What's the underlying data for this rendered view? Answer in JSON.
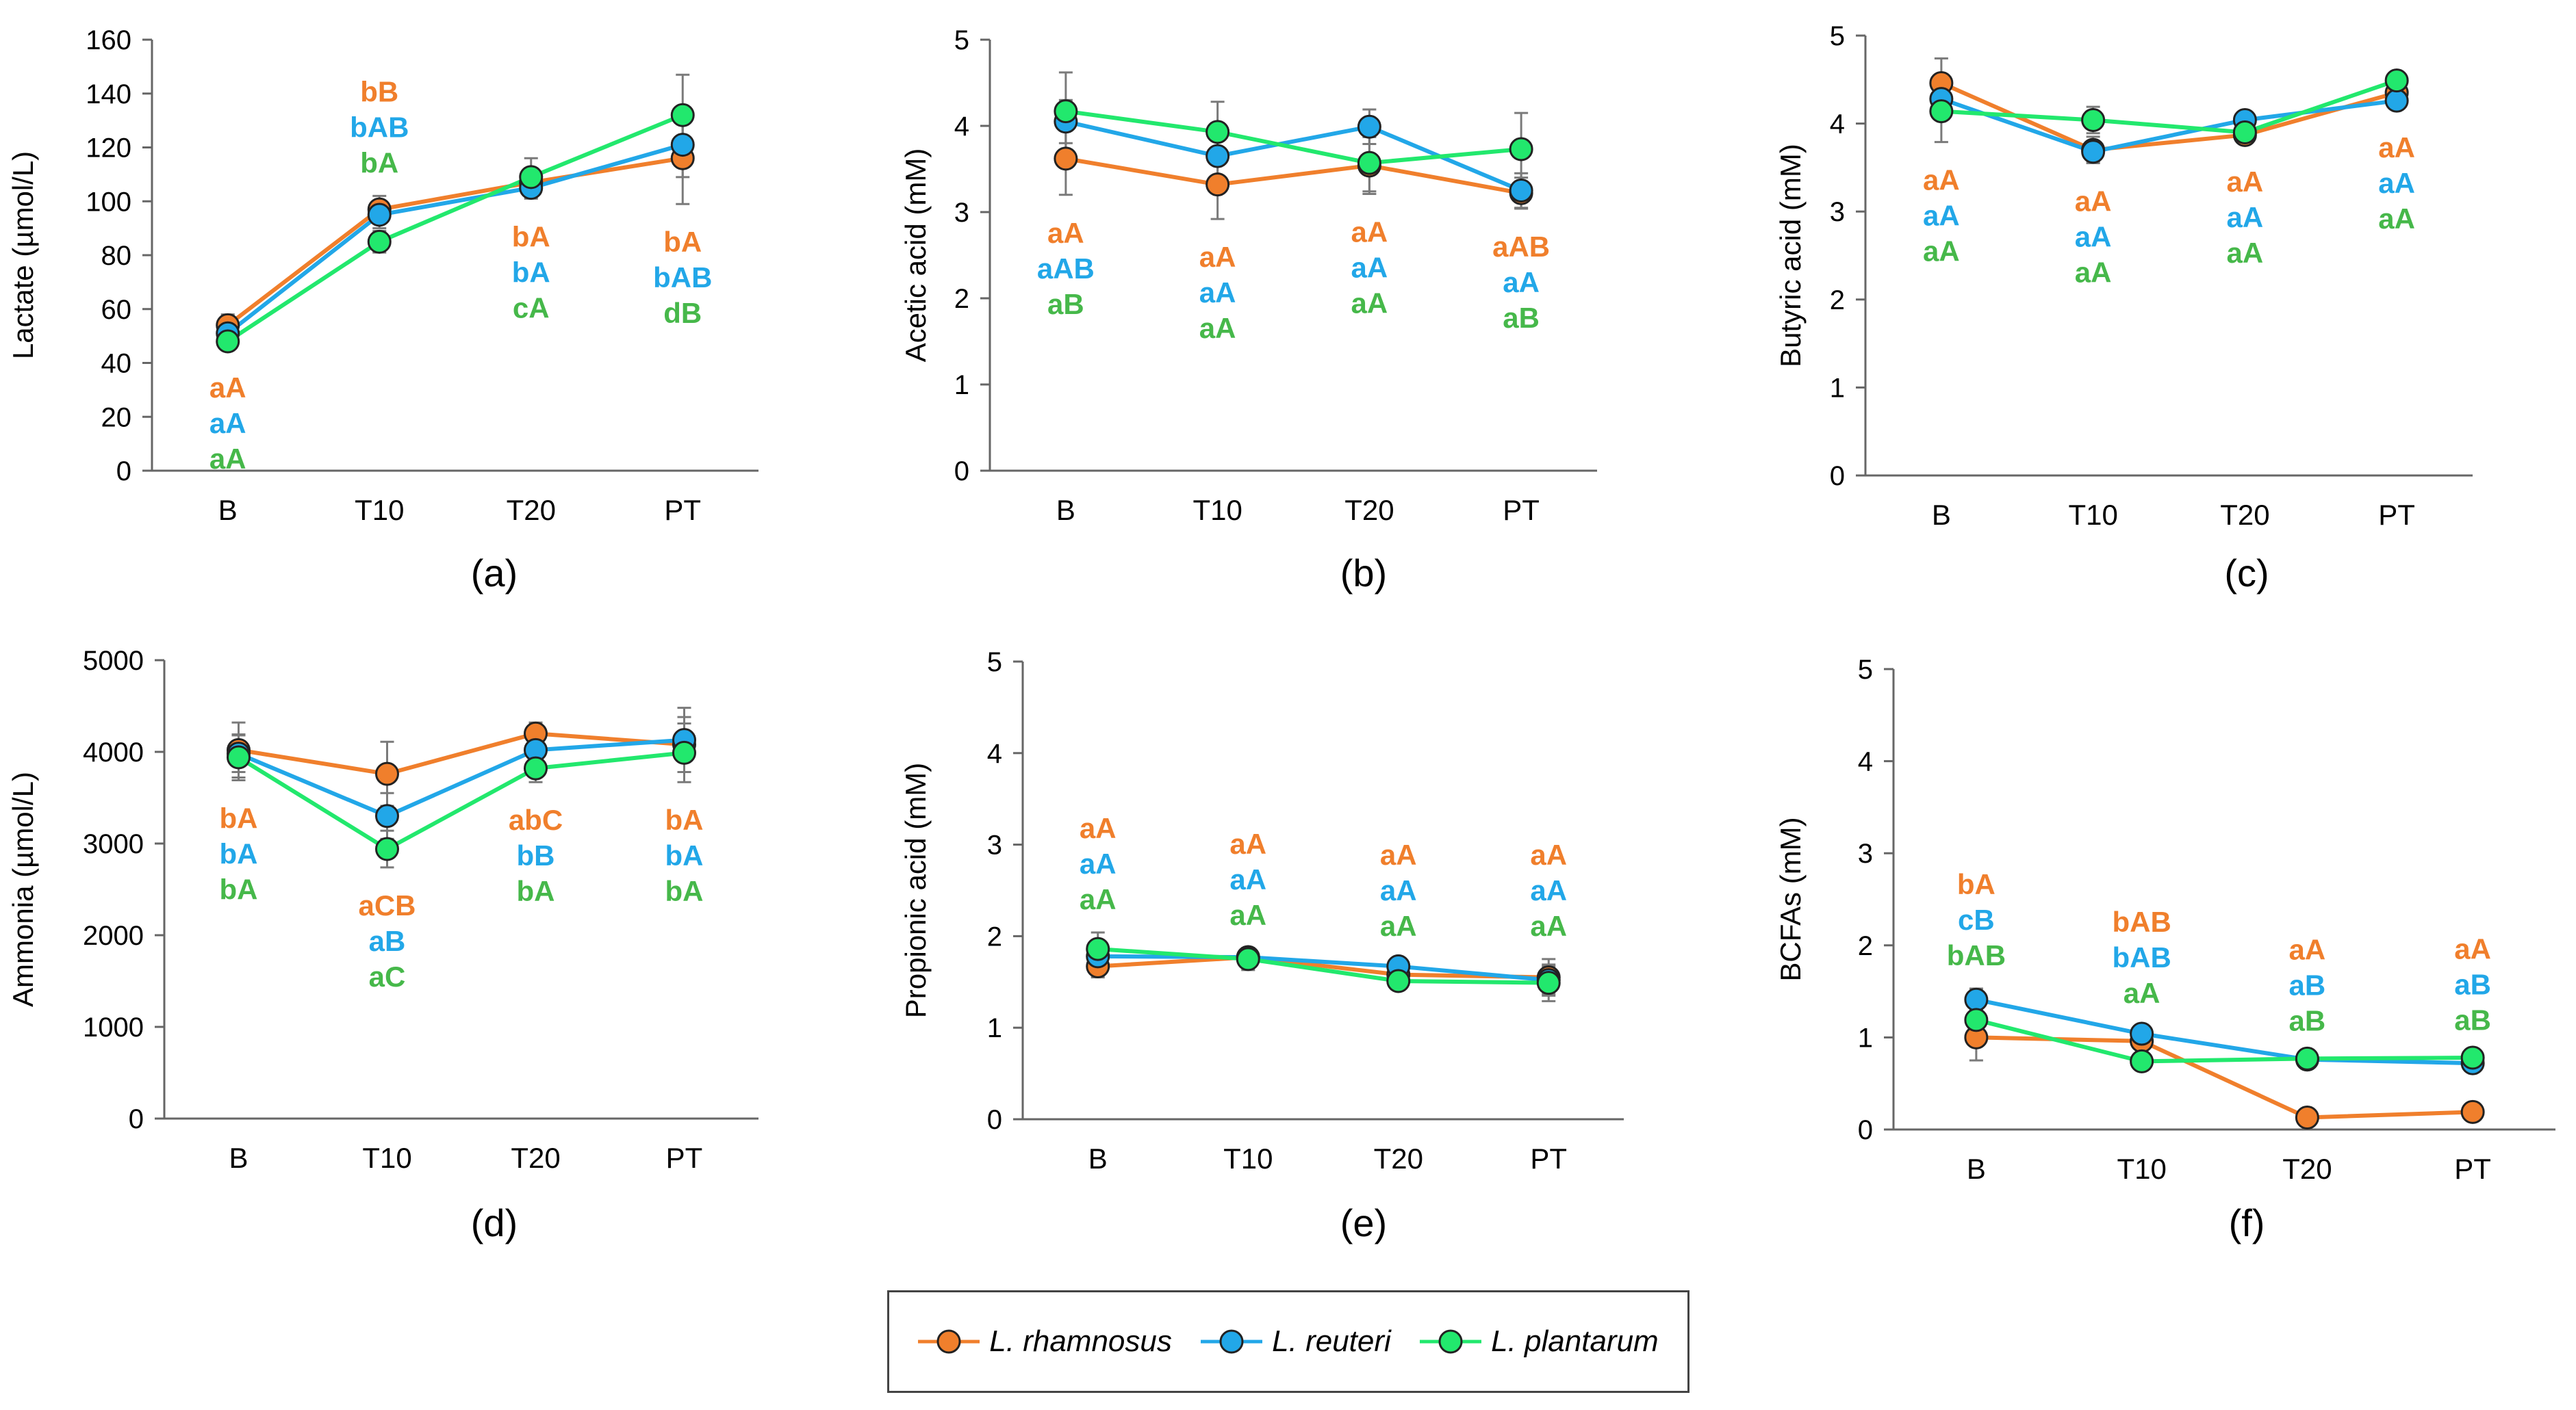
{
  "series_styles": [
    {
      "name": "L. rhamnosus",
      "color": "#F07F2C"
    },
    {
      "name": "L. reuteri",
      "color": "#22A7E8"
    },
    {
      "name": "L. plantarum",
      "color": "#22E86D"
    }
  ],
  "letter_colors": [
    "#F07F2C",
    "#22A7E8",
    "#46B84A"
  ],
  "legend": {
    "items": [
      "L. rhamnosus",
      "L. reuteri",
      "L. plantarum"
    ]
  },
  "chart_data": [
    {
      "type": "line",
      "caption": "(a)",
      "ylabel": "Lactate (µmol/L)",
      "categories": [
        "B",
        "T10",
        "T20",
        "PT"
      ],
      "ylim": [
        0,
        160
      ],
      "yticks": [
        "0",
        "20",
        "40",
        "60",
        "80",
        "100",
        "120",
        "140",
        "160"
      ],
      "series": [
        {
          "name": "L. rhamnosus",
          "values": [
            54,
            97,
            107,
            116
          ],
          "errors": [
            4,
            5,
            5,
            17
          ]
        },
        {
          "name": "L. reuteri",
          "values": [
            51,
            95,
            105,
            121
          ],
          "errors": [
            3,
            5,
            4,
            12
          ]
        },
        {
          "name": "L. plantarum",
          "values": [
            48,
            85,
            109,
            132
          ],
          "errors": [
            3,
            4,
            7,
            15
          ]
        }
      ],
      "letters": [
        [
          "aA",
          "aA",
          "aA"
        ],
        [
          "bB",
          "bAB",
          "bA"
        ],
        [
          "bA",
          "bA",
          "cA"
        ],
        [
          "bA",
          "bAB",
          "dB"
        ]
      ],
      "letter_positions": [
        "below",
        "above",
        "below",
        "below"
      ]
    },
    {
      "type": "line",
      "caption": "(b)",
      "ylabel": "Acetic acid (mM)",
      "categories": [
        "B",
        "T10",
        "T20",
        "PT"
      ],
      "ylim": [
        0,
        5
      ],
      "yticks": [
        "0",
        "1",
        "2",
        "3",
        "4",
        "5"
      ],
      "series": [
        {
          "name": "L. rhamnosus",
          "values": [
            3.62,
            3.32,
            3.54,
            3.22
          ],
          "errors": [
            0.42,
            0.4,
            0.33,
            0.18
          ]
        },
        {
          "name": "L. reuteri",
          "values": [
            4.05,
            3.65,
            3.99,
            3.25
          ],
          "errors": [
            0.25,
            0.3,
            0.2,
            0.2
          ]
        },
        {
          "name": "L. plantarum",
          "values": [
            4.17,
            3.93,
            3.57,
            3.73
          ],
          "errors": [
            0.45,
            0.35,
            0.33,
            0.42
          ]
        }
      ],
      "letters": [
        [
          "aA",
          "aAB",
          "aB"
        ],
        [
          "aA",
          "aA",
          "aA"
        ],
        [
          "aA",
          "aA",
          "aA"
        ],
        [
          "aAB",
          "aA",
          "aB"
        ]
      ],
      "letter_positions": [
        "below",
        "below",
        "below",
        "below"
      ]
    },
    {
      "type": "line",
      "caption": "(c)",
      "ylabel": "Butyric acid (mM)",
      "categories": [
        "B",
        "T10",
        "T20",
        "PT"
      ],
      "ylim": [
        0,
        5
      ],
      "yticks": [
        "0",
        "1",
        "2",
        "3",
        "4",
        "5"
      ],
      "series": [
        {
          "name": "L. rhamnosus",
          "values": [
            4.46,
            3.7,
            3.87,
            4.35
          ],
          "errors": [
            0.28,
            0.15,
            0.1,
            0.12
          ]
        },
        {
          "name": "L. reuteri",
          "values": [
            4.28,
            3.68,
            4.04,
            4.26
          ],
          "errors": [
            0.15,
            0.12,
            0.08,
            0.1
          ]
        },
        {
          "name": "L. plantarum",
          "values": [
            4.14,
            4.04,
            3.9,
            4.49
          ],
          "errors": [
            0.35,
            0.15,
            0.12,
            0.1
          ]
        }
      ],
      "letters": [
        [
          "aA",
          "aA",
          "aA"
        ],
        [
          "aA",
          "aA",
          "aA"
        ],
        [
          "aA",
          "aA",
          "aA"
        ],
        [
          "aA",
          "aA",
          "aA"
        ]
      ],
      "letter_positions": [
        "below",
        "below",
        "below",
        "below"
      ]
    },
    {
      "type": "line",
      "caption": "(d)",
      "ylabel": "Ammonia (µmol/L)",
      "categories": [
        "B",
        "T10",
        "T20",
        "PT"
      ],
      "ylim": [
        0,
        5000
      ],
      "yticks": [
        "0",
        "1000",
        "2000",
        "3000",
        "4000",
        "5000"
      ],
      "series": [
        {
          "name": "L. rhamnosus",
          "values": [
            4020,
            3760,
            4200,
            4080
          ],
          "errors": [
            300,
            350,
            120,
            300
          ]
        },
        {
          "name": "L. reuteri",
          "values": [
            3980,
            3300,
            4020,
            4130
          ],
          "errors": [
            200,
            250,
            150,
            350
          ]
        },
        {
          "name": "L. plantarum",
          "values": [
            3940,
            2940,
            3820,
            3990
          ],
          "errors": [
            250,
            200,
            150,
            320
          ]
        }
      ],
      "letters": [
        [
          "bA",
          "bA",
          "bA"
        ],
        [
          "aCB",
          "aB",
          "aC"
        ],
        [
          "abC",
          "bB",
          "bA"
        ],
        [
          "bA",
          "bA",
          "bA"
        ]
      ],
      "letter_positions": [
        "below",
        "below",
        "below",
        "below"
      ]
    },
    {
      "type": "line",
      "caption": "(e)",
      "ylabel": "Propionic acid (mM)",
      "categories": [
        "B",
        "T10",
        "T20",
        "PT"
      ],
      "ylim": [
        0,
        5
      ],
      "yticks": [
        "0",
        "1",
        "2",
        "3",
        "4",
        "5"
      ],
      "series": [
        {
          "name": "L. rhamnosus",
          "values": [
            1.67,
            1.77,
            1.58,
            1.55
          ],
          "errors": [
            0.12,
            0.08,
            0.08,
            0.2
          ]
        },
        {
          "name": "L. reuteri",
          "values": [
            1.78,
            1.77,
            1.67,
            1.52
          ],
          "errors": [
            0.15,
            0.08,
            0.08,
            0.15
          ]
        },
        {
          "name": "L. plantarum",
          "values": [
            1.86,
            1.75,
            1.51,
            1.49
          ],
          "errors": [
            0.18,
            0.12,
            0.06,
            0.2
          ]
        }
      ],
      "letters": [
        [
          "aA",
          "aA",
          "aA"
        ],
        [
          "aA",
          "aA",
          "aA"
        ],
        [
          "aA",
          "aA",
          "aA"
        ],
        [
          "aA",
          "aA",
          "aA"
        ]
      ],
      "letter_positions": [
        "above",
        "above",
        "above",
        "above"
      ]
    },
    {
      "type": "line",
      "caption": "(f)",
      "ylabel": "BCFAs (mM)",
      "categories": [
        "B",
        "T10",
        "T20",
        "PT"
      ],
      "ylim": [
        0,
        5
      ],
      "yticks": [
        "0",
        "1",
        "2",
        "3",
        "4",
        "5"
      ],
      "series": [
        {
          "name": "L. rhamnosus",
          "values": [
            1.0,
            0.96,
            0.13,
            0.19
          ],
          "errors": [
            0.25,
            0.05,
            0.03,
            0.03
          ]
        },
        {
          "name": "L. reuteri",
          "values": [
            1.41,
            1.04,
            0.76,
            0.72
          ],
          "errors": [
            0.12,
            0.08,
            0.05,
            0.05
          ]
        },
        {
          "name": "L. plantarum",
          "values": [
            1.19,
            0.74,
            0.77,
            0.78
          ],
          "errors": [
            0.18,
            0.05,
            0.05,
            0.05
          ]
        }
      ],
      "letters": [
        [
          "bA",
          "cB",
          "bAB"
        ],
        [
          "bAB",
          "bAB",
          "aA"
        ],
        [
          "aA",
          "aB",
          "aB"
        ],
        [
          "aA",
          "aB",
          "aB"
        ]
      ],
      "letter_positions": [
        "above",
        "above",
        "above",
        "above"
      ]
    }
  ]
}
